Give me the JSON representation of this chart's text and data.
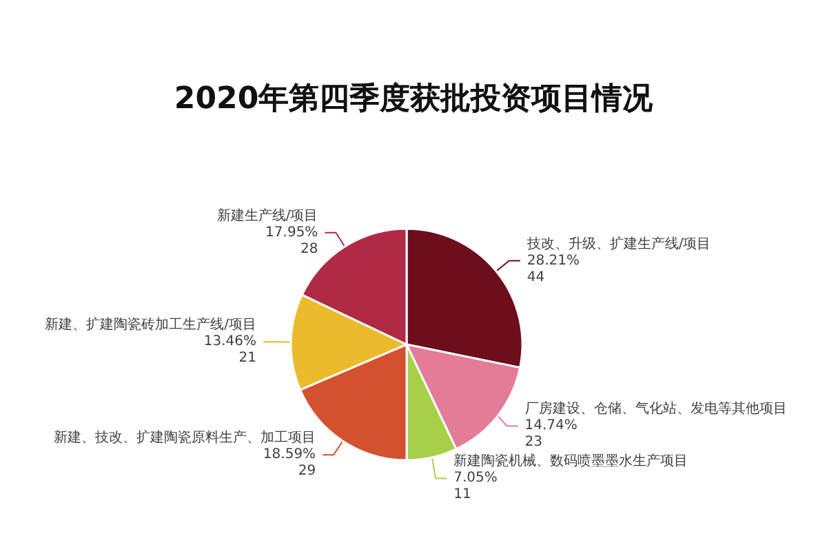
{
  "chart_data": {
    "type": "pie",
    "title": "2020年第四季度获批投资项目情况",
    "categories": [
      "技改、升级、扩建生产线/项目",
      "厂房建设、仓储、气化站、发电等其他项目",
      "新建陶瓷机械、数码喷墨墨水生产项目",
      "新建、技改、扩建陶瓷原料生产、加工项目",
      "新建、扩建陶瓷砖加工生产线/项目",
      "新建生产线/项目"
    ],
    "values": [
      44,
      23,
      11,
      29,
      21,
      28
    ],
    "colors": [
      "#6e0d1c",
      "#e47b97",
      "#a8cf4a",
      "#d4512f",
      "#ebbb2b",
      "#b02a45"
    ],
    "value_labels": [
      "28.21%\n44",
      "14.74%\n23",
      "7.05%\n11",
      "18.59%\n29",
      "13.46%\n21",
      "17.95%\n28"
    ]
  }
}
